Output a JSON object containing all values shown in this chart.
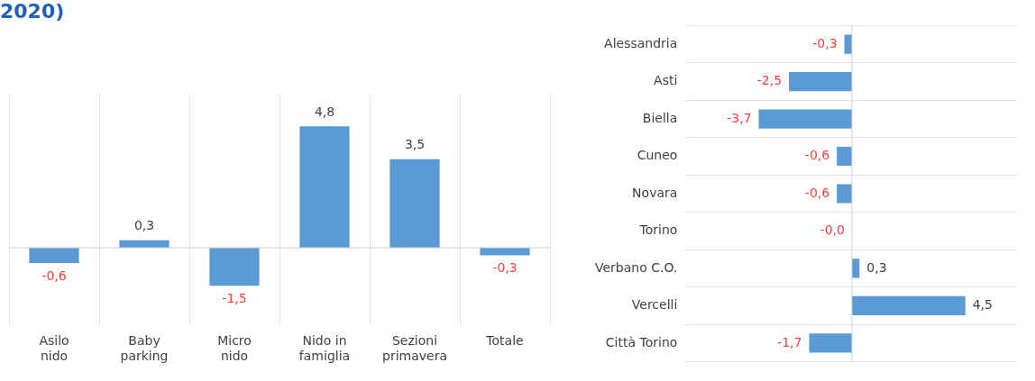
{
  "chart_data": [
    {
      "type": "bar",
      "title": "2020)",
      "categories": [
        "Asilo nido",
        "Baby parking",
        "Micro nido",
        "Nido in famiglia",
        "Sezioni primavera",
        "Totale"
      ],
      "values": [
        -0.6,
        0.3,
        -1.5,
        4.8,
        3.5,
        -0.3
      ],
      "value_labels": [
        "-0,6",
        "0,3",
        "-1,5",
        "4,8",
        "3,5",
        "-0,3"
      ],
      "color": "#5b9bd5",
      "grid": "x"
    },
    {
      "type": "bar",
      "orientation": "horizontal",
      "categories": [
        "Alessandria",
        "Asti",
        "Biella",
        "Cuneo",
        "Novara",
        "Torino",
        "Verbano C.O.",
        "Vercelli",
        "Città Torino"
      ],
      "values": [
        -0.3,
        -2.5,
        -3.7,
        -0.6,
        -0.6,
        -0.0,
        0.3,
        4.5,
        -1.7
      ],
      "value_labels": [
        "-0,3",
        "-2,5",
        "-3,7",
        "-0,6",
        "-0,6",
        "-0,0",
        "0,3",
        "4,5",
        "-1,7"
      ],
      "color": "#5b9bd5",
      "grid": "y"
    }
  ]
}
